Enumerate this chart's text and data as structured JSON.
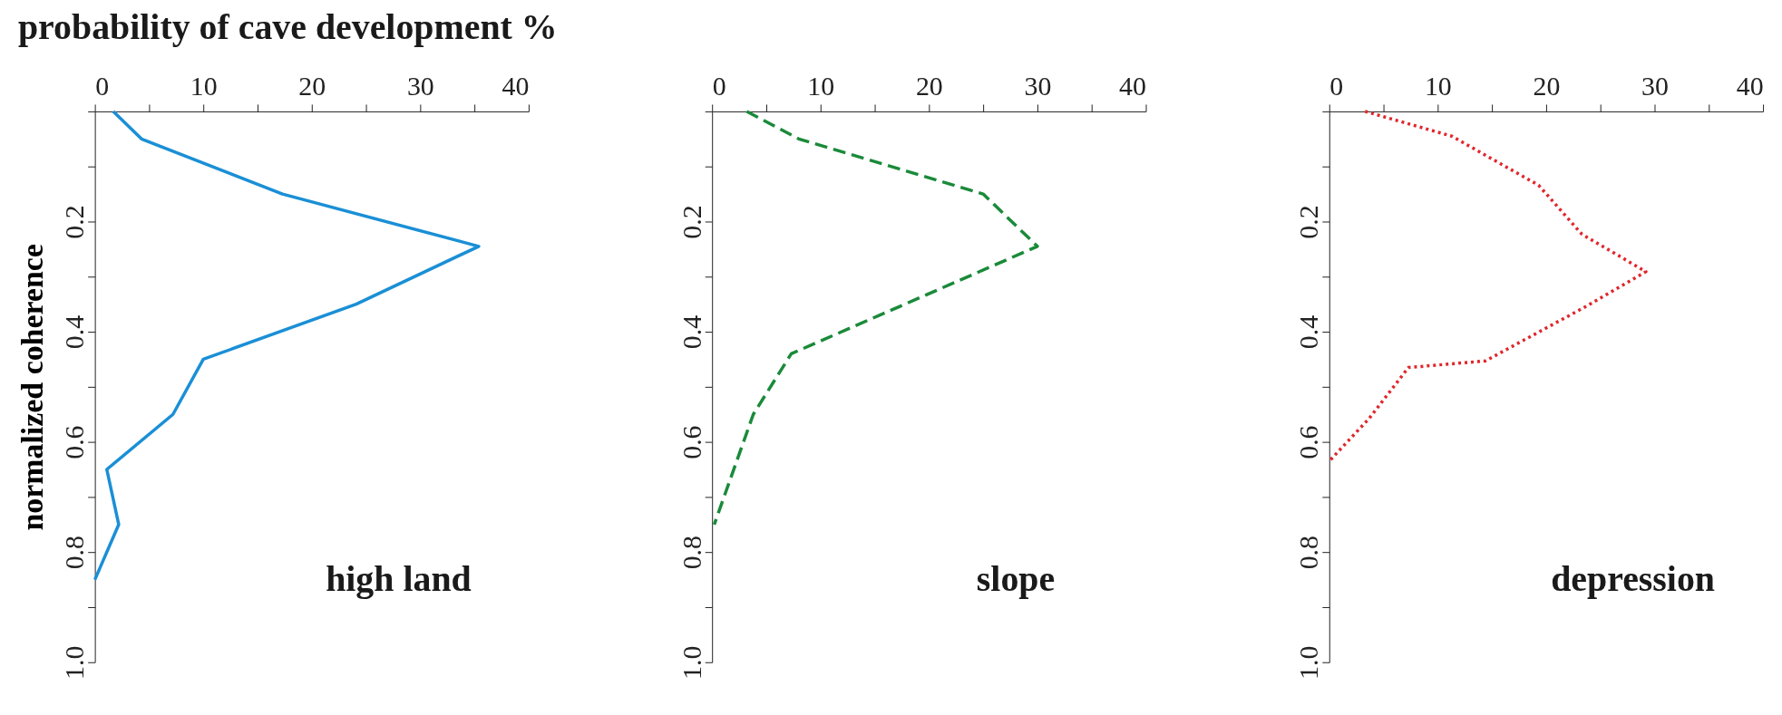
{
  "chart_data": [
    {
      "type": "line",
      "title": "probability of cave development   %",
      "ylabel": "normalized coherence",
      "xlim": [
        0,
        40
      ],
      "xticks": [
        0,
        {
          "value": 5,
          "label": null
        },
        10,
        {
          "value": 15,
          "label": null
        },
        20,
        {
          "value": 25,
          "label": null
        },
        30,
        {
          "value": 35,
          "label": null
        },
        40
      ],
      "ylim": [
        1.0,
        0
      ],
      "yticks": [
        {
          "value": 0,
          "label": null
        },
        {
          "value": 0.1,
          "label": null
        },
        {
          "value": 0.2,
          "label": "0.2"
        },
        {
          "value": 0.3,
          "label": null
        },
        {
          "value": 0.4,
          "label": "0.4"
        },
        {
          "value": 0.5,
          "label": null
        },
        {
          "value": 0.6,
          "label": "0.6"
        },
        {
          "value": 0.7,
          "label": null
        },
        {
          "value": 0.8,
          "label": "0.8"
        },
        {
          "value": 0.9,
          "label": null
        },
        {
          "value": 1.0,
          "label": "1.0"
        }
      ],
      "grid": false,
      "series": [
        {
          "name": "high land",
          "color": "#1a8fd6",
          "line_style": "solid",
          "x": [
            1.7,
            4.3,
            17.3,
            35.4,
            24.1,
            10.0,
            7.2,
            1.1,
            2.2,
            0
          ],
          "values": [
            0,
            0.05,
            0.15,
            0.245,
            0.35,
            0.45,
            0.55,
            0.65,
            0.75,
            0.85
          ]
        }
      ]
    },
    {
      "type": "line",
      "xlim": [
        0,
        40
      ],
      "xticks": [
        0,
        {
          "value": 5,
          "label": null
        },
        10,
        {
          "value": 15,
          "label": null
        },
        20,
        {
          "value": 25,
          "label": null
        },
        30,
        {
          "value": 35,
          "label": null
        },
        40
      ],
      "ylim": [
        1.0,
        0
      ],
      "yticks": [
        {
          "value": 0,
          "label": null
        },
        {
          "value": 0.1,
          "label": null
        },
        {
          "value": 0.2,
          "label": "0.2"
        },
        {
          "value": 0.3,
          "label": null
        },
        {
          "value": 0.4,
          "label": "0.4"
        },
        {
          "value": 0.5,
          "label": null
        },
        {
          "value": 0.6,
          "label": "0.6"
        },
        {
          "value": 0.7,
          "label": null
        },
        {
          "value": 0.8,
          "label": "0.8"
        },
        {
          "value": 0.9,
          "label": null
        },
        {
          "value": 1.0,
          "label": "1.0"
        }
      ],
      "grid": false,
      "series": [
        {
          "name": "slope",
          "color": "#1a8a3a",
          "line_style": "dashed",
          "x": [
            3.2,
            8.0,
            25.0,
            30.0,
            7.3,
            3.8,
            0.2
          ],
          "values": [
            0,
            0.05,
            0.15,
            0.245,
            0.44,
            0.55,
            0.75
          ]
        }
      ]
    },
    {
      "type": "line",
      "xlim": [
        0,
        40
      ],
      "xticks": [
        0,
        {
          "value": 5,
          "label": null
        },
        10,
        {
          "value": 15,
          "label": null
        },
        20,
        {
          "value": 25,
          "label": null
        },
        30,
        {
          "value": 35,
          "label": null
        },
        40
      ],
      "ylim": [
        1.0,
        0
      ],
      "yticks": [
        {
          "value": 0,
          "label": null
        },
        {
          "value": 0.1,
          "label": null
        },
        {
          "value": 0.2,
          "label": "0.2"
        },
        {
          "value": 0.3,
          "label": null
        },
        {
          "value": 0.4,
          "label": "0.4"
        },
        {
          "value": 0.5,
          "label": null
        },
        {
          "value": 0.6,
          "label": "0.6"
        },
        {
          "value": 0.7,
          "label": null
        },
        {
          "value": 0.8,
          "label": "0.8"
        },
        {
          "value": 0.9,
          "label": null
        },
        {
          "value": 1.0,
          "label": "1.0"
        }
      ],
      "grid": false,
      "series": [
        {
          "name": "depression",
          "color": "#e0262b",
          "line_style": "dotted",
          "x": [
            3.3,
            11.3,
            19.3,
            23.3,
            29.2,
            23.5,
            14.4,
            7.3,
            3.7,
            0
          ],
          "values": [
            0,
            0.045,
            0.134,
            0.223,
            0.291,
            0.356,
            0.453,
            0.465,
            0.557,
            0.635
          ]
        }
      ]
    }
  ]
}
